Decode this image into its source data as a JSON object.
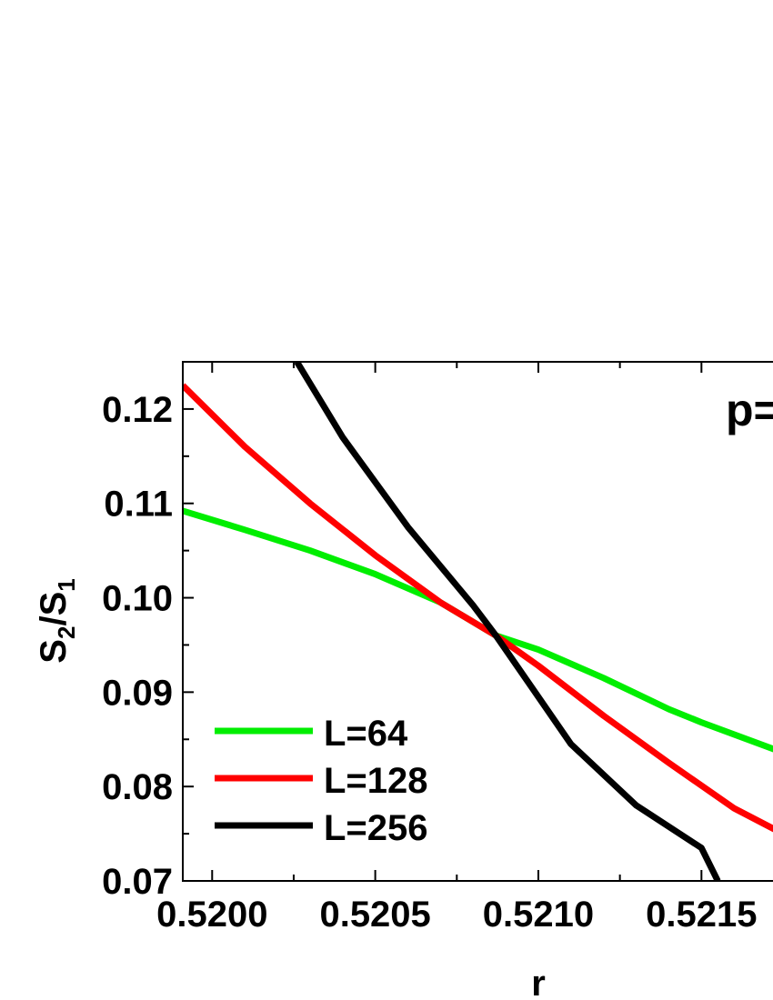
{
  "chart_data": {
    "type": "line",
    "title": "",
    "annotation": "p=",
    "xlabel": "r",
    "ylabel": {
      "base": "S",
      "sub1": "2",
      "sep": "/S",
      "sub2": "1"
    },
    "xlim": [
      0.51991,
      0.52175
    ],
    "ylim": [
      0.07,
      0.125
    ],
    "xticks": [
      {
        "value": 0.52,
        "label": "0.5200"
      },
      {
        "value": 0.5205,
        "label": "0.5205"
      },
      {
        "value": 0.521,
        "label": "0.5210"
      },
      {
        "value": 0.5215,
        "label": "0.5215"
      }
    ],
    "yticks": [
      {
        "value": 0.07,
        "label": "0.07"
      },
      {
        "value": 0.08,
        "label": "0.08"
      },
      {
        "value": 0.09,
        "label": "0.09"
      },
      {
        "value": 0.1,
        "label": "0.10"
      },
      {
        "value": 0.11,
        "label": "0.11"
      },
      {
        "value": 0.12,
        "label": "0.12"
      }
    ],
    "grid": false,
    "legend": "bottom-left",
    "series": [
      {
        "name": "L=64",
        "color": "#00ee00",
        "points": [
          [
            0.51991,
            0.1092
          ],
          [
            0.5201,
            0.1072
          ],
          [
            0.5203,
            0.105
          ],
          [
            0.5205,
            0.1025
          ],
          [
            0.5207,
            0.0995
          ],
          [
            0.52087,
            0.096
          ],
          [
            0.521,
            0.0945
          ],
          [
            0.5212,
            0.0915
          ],
          [
            0.5214,
            0.0882
          ],
          [
            0.5215,
            0.0868
          ],
          [
            0.52175,
            0.0836
          ]
        ]
      },
      {
        "name": "L=128",
        "color": "#ff0000",
        "points": [
          [
            0.51991,
            0.1225
          ],
          [
            0.5201,
            0.116
          ],
          [
            0.5203,
            0.11
          ],
          [
            0.5205,
            0.1045
          ],
          [
            0.5207,
            0.0995
          ],
          [
            0.52087,
            0.096
          ],
          [
            0.521,
            0.0928
          ],
          [
            0.5212,
            0.0875
          ],
          [
            0.5214,
            0.0825
          ],
          [
            0.5216,
            0.0777
          ],
          [
            0.52175,
            0.075
          ]
        ]
      },
      {
        "name": "L=256",
        "color": "#000000",
        "points": [
          [
            0.52026,
            0.125
          ],
          [
            0.5204,
            0.117
          ],
          [
            0.5206,
            0.1075
          ],
          [
            0.5208,
            0.0992
          ],
          [
            0.52087,
            0.096
          ],
          [
            0.521,
            0.0895
          ],
          [
            0.5211,
            0.0845
          ],
          [
            0.5213,
            0.078
          ],
          [
            0.5215,
            0.0735
          ],
          [
            0.52155,
            0.07
          ]
        ]
      }
    ]
  }
}
